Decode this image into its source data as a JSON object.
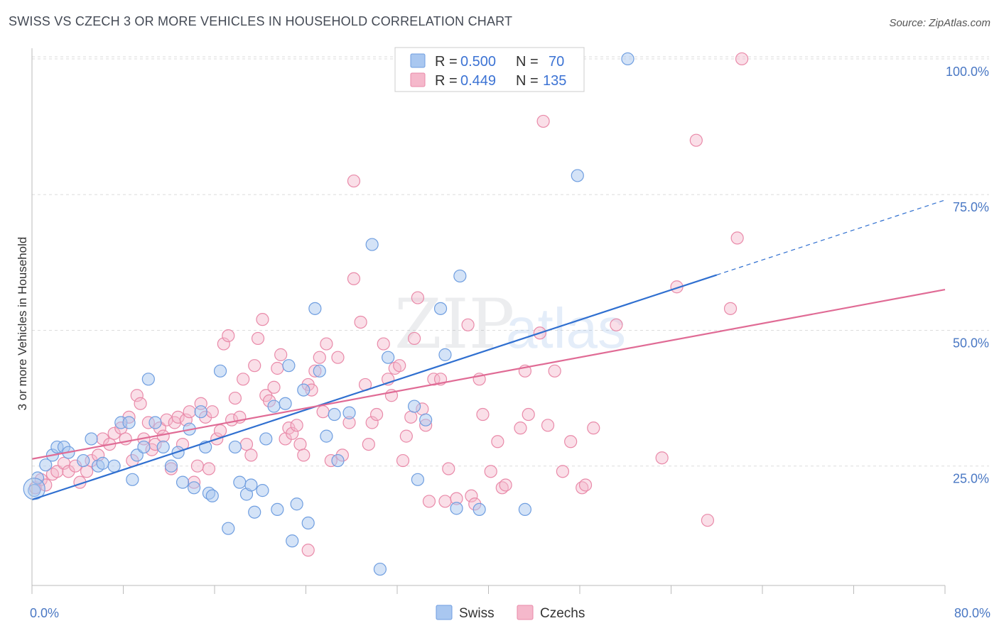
{
  "title": "SWISS VS CZECH 3 OR MORE VEHICLES IN HOUSEHOLD CORRELATION CHART",
  "source": "Source: ZipAtlas.com",
  "watermark": {
    "zip": "ZIP",
    "atlas": "atlas"
  },
  "colors": {
    "swiss_fill": "#a9c7f0",
    "swiss_stroke": "#6f9ee0",
    "swiss_line": "#2f6fd0",
    "czech_fill": "#f5b8cb",
    "czech_stroke": "#e98aa9",
    "czech_line": "#e06b95",
    "tick_text": "#4a78c4",
    "grid": "#dddddd"
  },
  "legend": {
    "rows": [
      {
        "r_label": "R =",
        "r_value": "0.500",
        "n_label": "N =",
        "n_value": "70",
        "series": "swiss"
      },
      {
        "r_label": "R =",
        "r_value": "0.449",
        "n_label": "N =",
        "n_value": "135",
        "series": "czech"
      }
    ],
    "bottom": [
      {
        "label": "Swiss",
        "series": "swiss"
      },
      {
        "label": "Czechs",
        "series": "czech"
      }
    ]
  },
  "chart_data": {
    "type": "scatter",
    "ylabel": "3 or more Vehicles in Household",
    "x_tick_labels": [
      "0.0%",
      "80.0%"
    ],
    "y_tick_labels": [
      "25.0%",
      "50.0%",
      "75.0%",
      "100.0%"
    ],
    "y_tick_values": [
      25,
      50,
      75,
      100
    ],
    "xlim": [
      0,
      80
    ],
    "ylim": [
      3,
      103
    ],
    "grid": true,
    "series": [
      {
        "name": "Swiss",
        "trend": {
          "x0": 0,
          "y0": 18.8,
          "x1": 60,
          "y1": 60.2,
          "x_dash_end": 80,
          "y_dash_end": 74.0
        },
        "points": [
          [
            0.2,
            20.5
          ],
          [
            0.5,
            22.8
          ],
          [
            1.2,
            25.2
          ],
          [
            1.8,
            27
          ],
          [
            2.2,
            28.5
          ],
          [
            2.8,
            28.5
          ],
          [
            3.2,
            27.5
          ],
          [
            4.5,
            26
          ],
          [
            5.2,
            30
          ],
          [
            5.8,
            25
          ],
          [
            6.2,
            25.5
          ],
          [
            7.2,
            25
          ],
          [
            7.8,
            33
          ],
          [
            8.5,
            33
          ],
          [
            8.8,
            22.5
          ],
          [
            9.2,
            27
          ],
          [
            9.8,
            28.5
          ],
          [
            10.2,
            41
          ],
          [
            10.8,
            33
          ],
          [
            11.5,
            28.5
          ],
          [
            12.2,
            25
          ],
          [
            12.8,
            27.5
          ],
          [
            13.2,
            22
          ],
          [
            13.8,
            31.8
          ],
          [
            14.2,
            21
          ],
          [
            14.8,
            35
          ],
          [
            15.2,
            28.5
          ],
          [
            15.5,
            20
          ],
          [
            15.8,
            19.5
          ],
          [
            16.5,
            42.5
          ],
          [
            17.2,
            13.5
          ],
          [
            17.8,
            28.5
          ],
          [
            18.2,
            22
          ],
          [
            18.8,
            19.8
          ],
          [
            19.2,
            21.5
          ],
          [
            19.5,
            16.5
          ],
          [
            20.2,
            20.5
          ],
          [
            20.5,
            30
          ],
          [
            21.2,
            36
          ],
          [
            21.5,
            17
          ],
          [
            22.2,
            36.5
          ],
          [
            22.5,
            43.5
          ],
          [
            22.8,
            11.2
          ],
          [
            23.2,
            18
          ],
          [
            23.8,
            39
          ],
          [
            24.2,
            14.5
          ],
          [
            24.8,
            54
          ],
          [
            25.2,
            42.5
          ],
          [
            25.8,
            30.5
          ],
          [
            26.5,
            34.5
          ],
          [
            26.8,
            26
          ],
          [
            27.8,
            34.8
          ],
          [
            29.8,
            65.8
          ],
          [
            30.5,
            6
          ],
          [
            31.2,
            45
          ],
          [
            33.5,
            36
          ],
          [
            33.8,
            22.5
          ],
          [
            34.5,
            33.5
          ],
          [
            35.8,
            54
          ],
          [
            36.2,
            45.5
          ],
          [
            37.2,
            17.2
          ],
          [
            37.5,
            60
          ],
          [
            39.2,
            17
          ],
          [
            43.2,
            17
          ],
          [
            47.8,
            78.5
          ],
          [
            52.2,
            100
          ]
        ]
      },
      {
        "name": "Czechs",
        "trend": {
          "x0": 0,
          "y0": 26.3,
          "x1": 80,
          "y1": 57.5
        },
        "points": [
          [
            0.3,
            21
          ],
          [
            0.8,
            22.5
          ],
          [
            1.2,
            21.5
          ],
          [
            1.8,
            23.5
          ],
          [
            2.2,
            24
          ],
          [
            2.8,
            25.5
          ],
          [
            3.2,
            24
          ],
          [
            3.8,
            25
          ],
          [
            4.2,
            22
          ],
          [
            4.8,
            24
          ],
          [
            5.2,
            26
          ],
          [
            5.8,
            27
          ],
          [
            6.2,
            30
          ],
          [
            6.8,
            29
          ],
          [
            7.2,
            31
          ],
          [
            7.8,
            32
          ],
          [
            8.2,
            30
          ],
          [
            8.5,
            34
          ],
          [
            8.8,
            26
          ],
          [
            9.2,
            38
          ],
          [
            9.5,
            36.5
          ],
          [
            9.8,
            30
          ],
          [
            10.2,
            33
          ],
          [
            10.5,
            28
          ],
          [
            10.8,
            29
          ],
          [
            11.2,
            32
          ],
          [
            11.5,
            30.5
          ],
          [
            11.8,
            33.5
          ],
          [
            12.2,
            24.5
          ],
          [
            12.5,
            33
          ],
          [
            12.8,
            34
          ],
          [
            13.2,
            29
          ],
          [
            13.5,
            33.5
          ],
          [
            13.8,
            35
          ],
          [
            14.2,
            22
          ],
          [
            14.5,
            25
          ],
          [
            14.8,
            36.5
          ],
          [
            15.2,
            34
          ],
          [
            15.5,
            24.5
          ],
          [
            15.8,
            35
          ],
          [
            16.2,
            30
          ],
          [
            16.5,
            31.5
          ],
          [
            16.8,
            47.5
          ],
          [
            17.2,
            49
          ],
          [
            17.5,
            33.5
          ],
          [
            17.8,
            37.5
          ],
          [
            18.2,
            34
          ],
          [
            18.5,
            41
          ],
          [
            18.8,
            29
          ],
          [
            19.2,
            27
          ],
          [
            19.5,
            43.5
          ],
          [
            19.8,
            48.5
          ],
          [
            20.2,
            52
          ],
          [
            20.5,
            38
          ],
          [
            20.8,
            37
          ],
          [
            21.2,
            39.5
          ],
          [
            21.5,
            43
          ],
          [
            21.8,
            45.5
          ],
          [
            22.2,
            30
          ],
          [
            22.5,
            32
          ],
          [
            22.8,
            31
          ],
          [
            23.2,
            32.5
          ],
          [
            23.5,
            29
          ],
          [
            23.8,
            27
          ],
          [
            24.2,
            40
          ],
          [
            24.5,
            39
          ],
          [
            24.8,
            42.5
          ],
          [
            25.2,
            45
          ],
          [
            25.5,
            35
          ],
          [
            25.8,
            47.5
          ],
          [
            26.2,
            26
          ],
          [
            26.8,
            45
          ],
          [
            27.2,
            27
          ],
          [
            27.8,
            33
          ],
          [
            28.2,
            59.5
          ],
          [
            28.8,
            51.5
          ],
          [
            28.2,
            77.5
          ],
          [
            29.2,
            40
          ],
          [
            29.5,
            29
          ],
          [
            29.8,
            33
          ],
          [
            30.2,
            34.5
          ],
          [
            30.8,
            47.5
          ],
          [
            31.2,
            41
          ],
          [
            31.5,
            38
          ],
          [
            31.8,
            43
          ],
          [
            32.2,
            43.5
          ],
          [
            32.5,
            26
          ],
          [
            32.8,
            30.5
          ],
          [
            33.2,
            34
          ],
          [
            33.5,
            48.5
          ],
          [
            33.8,
            56
          ],
          [
            34.2,
            35.5
          ],
          [
            34.5,
            32.5
          ],
          [
            34.8,
            18.5
          ],
          [
            35.2,
            41
          ],
          [
            35.8,
            41
          ],
          [
            36.2,
            18.5
          ],
          [
            36.5,
            24.5
          ],
          [
            37.2,
            19
          ],
          [
            38.2,
            51
          ],
          [
            38.5,
            19.5
          ],
          [
            38.8,
            18
          ],
          [
            39.2,
            41
          ],
          [
            39.5,
            34.5
          ],
          [
            40.2,
            24
          ],
          [
            40.8,
            29.5
          ],
          [
            41.2,
            21
          ],
          [
            41.5,
            21.5
          ],
          [
            42.8,
            32
          ],
          [
            43.2,
            42.5
          ],
          [
            43.5,
            34.5
          ],
          [
            44.5,
            49.5
          ],
          [
            44.8,
            88.5
          ],
          [
            45.2,
            32.5
          ],
          [
            45.8,
            42.5
          ],
          [
            46.5,
            24
          ],
          [
            47.2,
            29.5
          ],
          [
            48.2,
            21
          ],
          [
            48.5,
            21.5
          ],
          [
            49.2,
            32
          ],
          [
            51.2,
            51
          ],
          [
            55.2,
            26.5
          ],
          [
            56.5,
            58
          ],
          [
            58.2,
            85
          ],
          [
            59.2,
            15
          ],
          [
            61.2,
            54
          ],
          [
            61.8,
            67
          ],
          [
            62.2,
            100
          ],
          [
            24.2,
            9.5
          ]
        ]
      }
    ]
  }
}
